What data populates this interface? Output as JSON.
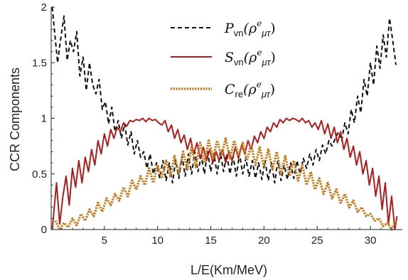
{
  "chart_data": {
    "type": "line",
    "xlabel": "L/E(Km/MeV)",
    "ylabel": "CCR Components",
    "xlim": [
      0,
      33
    ],
    "ylim": [
      0,
      2
    ],
    "xticks": [
      5,
      10,
      15,
      20,
      25,
      30
    ],
    "yticks": [
      0,
      0.5,
      1,
      1.5,
      2
    ],
    "ytick_labels": [
      "0",
      "0.5",
      "1",
      "1.5",
      "2"
    ],
    "grid": false,
    "legend_position": "top-center",
    "series": [
      {
        "key": "pvn",
        "name": "P_vn(ρ^e_μτ)",
        "legend": {
          "main": "P",
          "sub": "vn",
          "open": "(ρ",
          "sup": "e",
          "sub2": "μτ",
          "close": ")"
        },
        "color": "#111111",
        "style": "dashed",
        "x": [
          0.1,
          0.6,
          0.9,
          1.2,
          1.5,
          1.8,
          2.1,
          2.4,
          2.7,
          3.0,
          3.3,
          3.6,
          3.9,
          4.2,
          4.5,
          4.8,
          5.1,
          5.4,
          5.7,
          6.0,
          6.3,
          6.6,
          6.9,
          7.2,
          7.5,
          7.8,
          8.1,
          8.4,
          8.7,
          9.0,
          9.3,
          9.6,
          9.9,
          10.2,
          10.5,
          10.8,
          11.1,
          11.4,
          11.7,
          12.0,
          12.3,
          12.6,
          12.9,
          13.2,
          13.5,
          13.8,
          14.1,
          14.4,
          14.7,
          15.0,
          15.3,
          15.6,
          15.9,
          16.2,
          16.5,
          16.8,
          17.1,
          17.4,
          17.7,
          18.0,
          18.3,
          18.6,
          18.9,
          19.2,
          19.5,
          19.8,
          20.1,
          20.4,
          20.7,
          21.0,
          21.3,
          21.6,
          21.9,
          22.2,
          22.5,
          22.8,
          23.1,
          23.4,
          23.7,
          24.0,
          24.3,
          24.6,
          24.9,
          25.2,
          25.5,
          25.8,
          26.1,
          26.4,
          26.7,
          27.0,
          27.3,
          27.6,
          27.9,
          28.2,
          28.5,
          28.8,
          29.1,
          29.4,
          29.7,
          30.0,
          30.3,
          30.6,
          30.9,
          31.2,
          31.5,
          31.8,
          32.1,
          32.4
        ],
        "y": [
          2.0,
          1.5,
          1.72,
          1.92,
          1.52,
          1.7,
          1.6,
          1.78,
          1.38,
          1.55,
          1.25,
          1.5,
          1.3,
          1.22,
          1.35,
          1.08,
          1.15,
          0.95,
          1.1,
          0.88,
          0.98,
          0.82,
          0.95,
          0.76,
          0.88,
          0.68,
          0.8,
          0.65,
          0.7,
          0.55,
          0.68,
          0.5,
          0.6,
          0.46,
          0.62,
          0.44,
          0.6,
          0.42,
          0.62,
          0.46,
          0.66,
          0.48,
          0.68,
          0.5,
          0.7,
          0.52,
          0.66,
          0.5,
          0.7,
          0.52,
          0.68,
          0.5,
          0.7,
          0.52,
          0.68,
          0.5,
          0.66,
          0.48,
          0.68,
          0.5,
          0.64,
          0.48,
          0.62,
          0.46,
          0.6,
          0.45,
          0.62,
          0.44,
          0.6,
          0.42,
          0.62,
          0.44,
          0.58,
          0.45,
          0.6,
          0.46,
          0.62,
          0.5,
          0.64,
          0.55,
          0.68,
          0.58,
          0.72,
          0.62,
          0.76,
          0.68,
          0.8,
          0.75,
          0.82,
          0.88,
          0.8,
          0.96,
          0.86,
          1.08,
          0.96,
          1.2,
          1.05,
          1.35,
          1.2,
          1.5,
          1.3,
          1.65,
          1.45,
          1.75,
          1.55,
          1.9,
          1.7,
          1.48
        ]
      },
      {
        "key": "svn",
        "name": "S_vn(ρ^e_μτ)",
        "legend": {
          "main": "S",
          "sub": "vn",
          "open": "(ρ",
          "sup": "e",
          "sub2": "μτ",
          "close": ")"
        },
        "color": "#b01c1c",
        "style": "solid",
        "x": [
          0.1,
          0.5,
          0.8,
          1.1,
          1.4,
          1.7,
          2.0,
          2.3,
          2.6,
          2.9,
          3.2,
          3.5,
          3.8,
          4.1,
          4.4,
          4.7,
          5.0,
          5.3,
          5.6,
          5.9,
          6.2,
          6.5,
          6.8,
          7.1,
          7.4,
          7.7,
          8.0,
          8.3,
          8.6,
          8.9,
          9.2,
          9.5,
          9.8,
          10.1,
          10.4,
          10.7,
          11.0,
          11.3,
          11.6,
          11.9,
          12.2,
          12.5,
          12.8,
          13.1,
          13.4,
          13.7,
          14.0,
          14.3,
          14.6,
          14.9,
          15.2,
          15.5,
          15.8,
          16.1,
          16.4,
          16.7,
          17.0,
          17.3,
          17.6,
          17.9,
          18.2,
          18.5,
          18.8,
          19.1,
          19.4,
          19.7,
          20.0,
          20.3,
          20.6,
          20.9,
          21.2,
          21.5,
          21.8,
          22.1,
          22.4,
          22.7,
          23.0,
          23.3,
          23.6,
          23.9,
          24.2,
          24.5,
          24.8,
          25.1,
          25.4,
          25.7,
          26.0,
          26.3,
          26.6,
          26.9,
          27.2,
          27.5,
          27.8,
          28.1,
          28.4,
          28.7,
          29.0,
          29.3,
          29.6,
          29.9,
          30.2,
          30.5,
          30.8,
          31.1,
          31.4,
          31.7,
          32.0,
          32.3,
          32.5
        ],
        "y": [
          0.0,
          0.42,
          0.05,
          0.3,
          0.48,
          0.22,
          0.55,
          0.38,
          0.62,
          0.42,
          0.65,
          0.52,
          0.72,
          0.58,
          0.8,
          0.68,
          0.86,
          0.75,
          0.9,
          0.82,
          0.92,
          0.88,
          0.96,
          0.93,
          0.98,
          0.97,
          0.99,
          0.98,
          1.0,
          0.97,
          1.0,
          0.98,
          0.99,
          0.96,
          0.94,
          0.98,
          0.88,
          0.94,
          0.82,
          0.9,
          0.78,
          0.85,
          0.72,
          0.82,
          0.68,
          0.78,
          0.64,
          0.74,
          0.62,
          0.72,
          0.6,
          0.7,
          0.62,
          0.72,
          0.6,
          0.7,
          0.62,
          0.74,
          0.64,
          0.76,
          0.68,
          0.8,
          0.72,
          0.84,
          0.78,
          0.88,
          0.82,
          0.92,
          0.88,
          0.96,
          0.92,
          0.99,
          0.96,
          1.0,
          0.98,
          1.0,
          0.99,
          0.97,
          1.0,
          0.96,
          0.98,
          0.92,
          0.96,
          0.9,
          0.98,
          0.86,
          0.95,
          0.82,
          0.92,
          0.78,
          0.88,
          0.72,
          0.82,
          0.65,
          0.75,
          0.58,
          0.7,
          0.5,
          0.62,
          0.4,
          0.55,
          0.3,
          0.48,
          0.18,
          0.42,
          0.05,
          0.3,
          0.0,
          0.12
        ]
      },
      {
        "key": "cre",
        "name": "C_re(ρ^e_μτ)",
        "legend": {
          "main": "C",
          "sub": "re",
          "open": "(ρ",
          "sup": "e",
          "sub2": "μτ",
          "close": ")"
        },
        "color": "#c87a1a",
        "style": "dotted",
        "x": [
          0.4,
          0.8,
          1.2,
          1.6,
          2.0,
          2.4,
          2.8,
          3.2,
          3.6,
          4.0,
          4.4,
          4.8,
          5.2,
          5.6,
          6.0,
          6.4,
          6.8,
          7.2,
          7.6,
          8.0,
          8.4,
          8.8,
          9.2,
          9.6,
          10.0,
          10.4,
          10.8,
          11.2,
          11.6,
          12.0,
          12.4,
          12.8,
          13.2,
          13.6,
          14.0,
          14.4,
          14.8,
          15.2,
          15.6,
          16.0,
          16.4,
          16.8,
          17.2,
          17.6,
          18.0,
          18.4,
          18.8,
          19.2,
          19.6,
          20.0,
          20.4,
          20.8,
          21.2,
          21.6,
          22.0,
          22.4,
          22.8,
          23.2,
          23.6,
          24.0,
          24.4,
          24.8,
          25.2,
          25.6,
          26.0,
          26.4,
          26.8,
          27.2,
          27.6,
          28.0,
          28.4,
          28.8,
          29.2,
          29.6,
          30.0,
          30.4,
          30.8,
          31.2,
          31.6,
          32.0,
          32.4
        ],
        "y": [
          0.08,
          0.0,
          0.06,
          0.02,
          0.1,
          0.04,
          0.14,
          0.08,
          0.18,
          0.12,
          0.24,
          0.16,
          0.28,
          0.22,
          0.32,
          0.26,
          0.38,
          0.3,
          0.44,
          0.36,
          0.48,
          0.4,
          0.55,
          0.42,
          0.58,
          0.46,
          0.62,
          0.48,
          0.66,
          0.5,
          0.7,
          0.54,
          0.74,
          0.56,
          0.78,
          0.6,
          0.8,
          0.64,
          0.8,
          0.66,
          0.82,
          0.64,
          0.8,
          0.66,
          0.78,
          0.62,
          0.76,
          0.58,
          0.74,
          0.56,
          0.72,
          0.54,
          0.7,
          0.5,
          0.66,
          0.48,
          0.62,
          0.44,
          0.58,
          0.4,
          0.52,
          0.36,
          0.46,
          0.32,
          0.42,
          0.28,
          0.36,
          0.24,
          0.32,
          0.2,
          0.26,
          0.16,
          0.2,
          0.12,
          0.14,
          0.08,
          0.1,
          0.03,
          0.06,
          0.0,
          0.08
        ]
      }
    ]
  }
}
